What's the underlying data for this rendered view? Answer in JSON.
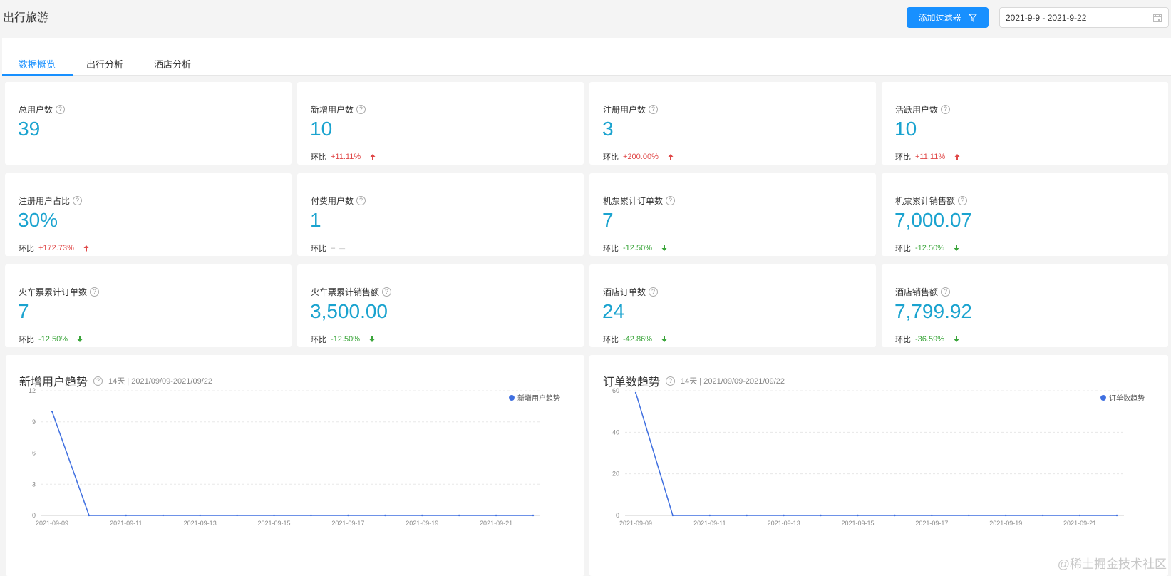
{
  "header": {
    "title": "出行旅游",
    "filter_button": "添加过滤器",
    "date_range": "2021-9-9 - 2021-9-22"
  },
  "tabs": [
    {
      "label": "数据概览",
      "active": true
    },
    {
      "label": "出行分析",
      "active": false
    },
    {
      "label": "酒店分析",
      "active": false
    }
  ],
  "compare_label": "环比",
  "cards": [
    {
      "label": "总用户数",
      "value": "39",
      "change": "",
      "trend": "none"
    },
    {
      "label": "新增用户数",
      "value": "10",
      "change": "+11.11%",
      "trend": "up"
    },
    {
      "label": "注册用户数",
      "value": "3",
      "change": "+200.00%",
      "trend": "up"
    },
    {
      "label": "活跃用户数",
      "value": "10",
      "change": "+11.11%",
      "trend": "up"
    },
    {
      "label": "注册用户占比",
      "value": "30%",
      "change": "+172.73%",
      "trend": "up"
    },
    {
      "label": "付费用户数",
      "value": "1",
      "change": "–",
      "trend": "neutral"
    },
    {
      "label": "机票累计订单数",
      "value": "7",
      "change": "-12.50%",
      "trend": "down"
    },
    {
      "label": "机票累计销售额",
      "value": "7,000.07",
      "change": "-12.50%",
      "trend": "down"
    },
    {
      "label": "火车票累计订单数",
      "value": "7",
      "change": "-12.50%",
      "trend": "down"
    },
    {
      "label": "火车票累计销售额",
      "value": "3,500.00",
      "change": "-12.50%",
      "trend": "down"
    },
    {
      "label": "酒店订单数",
      "value": "24",
      "change": "-42.86%",
      "trend": "down"
    },
    {
      "label": "酒店销售额",
      "value": "7,799.92",
      "change": "-36.59%",
      "trend": "down"
    }
  ],
  "chart_data": [
    {
      "type": "line",
      "title": "新增用户趋势",
      "subtitle": "14天 | 2021/09/09-2021/09/22",
      "legend": "新增用户趋势",
      "x": [
        "2021-09-09",
        "2021-09-10",
        "2021-09-11",
        "2021-09-12",
        "2021-09-13",
        "2021-09-14",
        "2021-09-15",
        "2021-09-16",
        "2021-09-17",
        "2021-09-18",
        "2021-09-19",
        "2021-09-20",
        "2021-09-21",
        "2021-09-22"
      ],
      "xticks": [
        "2021-09-09",
        "2021-09-11",
        "2021-09-13",
        "2021-09-15",
        "2021-09-17",
        "2021-09-19",
        "2021-09-21"
      ],
      "values": [
        10,
        0,
        0,
        0,
        0,
        0,
        0,
        0,
        0,
        0,
        0,
        0,
        0,
        0
      ],
      "yticks": [
        0,
        3,
        6,
        9,
        12
      ],
      "ylim": [
        0,
        12
      ],
      "color": "#3f6fe0"
    },
    {
      "type": "line",
      "title": "订单数趋势",
      "subtitle": "14天 | 2021/09/09-2021/09/22",
      "legend": "订单数趋势",
      "x": [
        "2021-09-09",
        "2021-09-10",
        "2021-09-11",
        "2021-09-12",
        "2021-09-13",
        "2021-09-14",
        "2021-09-15",
        "2021-09-16",
        "2021-09-17",
        "2021-09-18",
        "2021-09-19",
        "2021-09-20",
        "2021-09-21",
        "2021-09-22"
      ],
      "xticks": [
        "2021-09-09",
        "2021-09-11",
        "2021-09-13",
        "2021-09-15",
        "2021-09-17",
        "2021-09-19",
        "2021-09-21"
      ],
      "values": [
        59,
        0,
        0,
        0,
        0,
        0,
        0,
        0,
        0,
        0,
        0,
        0,
        0,
        0
      ],
      "yticks": [
        0,
        20,
        40,
        60
      ],
      "ylim": [
        0,
        60
      ],
      "color": "#3f6fe0"
    }
  ],
  "watermark": "@稀土掘金技术社区"
}
